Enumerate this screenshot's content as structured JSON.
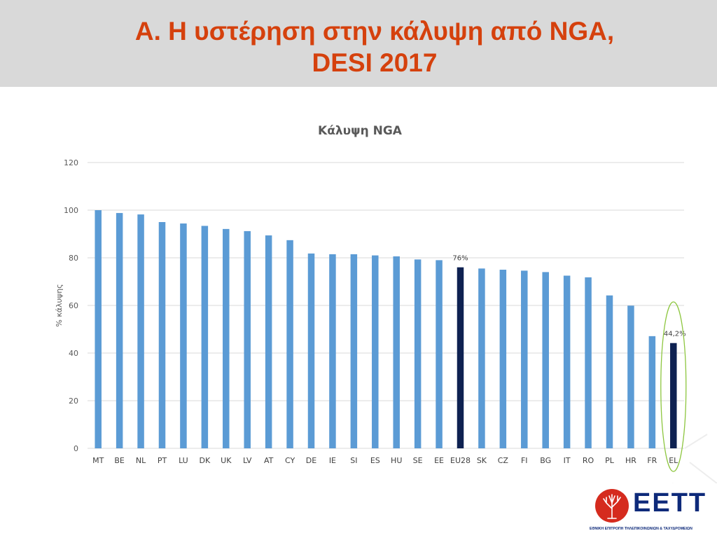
{
  "slide": {
    "title_line1": "Α. Η υστέρηση στην κάλυψη από NGA,",
    "title_line2": "DESI 2017"
  },
  "logo": {
    "wordmark": "ΕΕΤΤ",
    "subtitle": "ΕΘΝΙΚΗ ΕΠΙΤΡΟΠΗ ΤΗΛΕΠΙΚΟΙΝΩΝΙΩΝ & ΤΑΧΥΔΡΟΜΕΙΩΝ",
    "icon": "tree-seal-icon",
    "color": "#0e2a7a",
    "seal_color": "#d52b1e"
  },
  "chart_data": {
    "type": "bar",
    "title": "Κάλυψη NGA",
    "xlabel": "",
    "ylabel": "% κάλυψης",
    "ylim": [
      0,
      120
    ],
    "yticks": [
      0,
      20,
      40,
      60,
      80,
      100,
      120
    ],
    "grid": true,
    "legend": "none",
    "categories": [
      "MT",
      "BE",
      "NL",
      "PT",
      "LU",
      "DK",
      "UK",
      "LV",
      "AT",
      "CY",
      "DE",
      "IE",
      "SI",
      "ES",
      "HU",
      "SE",
      "EE",
      "EU28",
      "SK",
      "CZ",
      "FI",
      "BG",
      "IT",
      "RO",
      "PL",
      "HR",
      "FR",
      "EL"
    ],
    "values": [
      100,
      98.8,
      98.2,
      95,
      94.4,
      93.4,
      92.1,
      91.2,
      89.4,
      87.4,
      81.8,
      81.5,
      81.5,
      81,
      80.6,
      79.3,
      79,
      76,
      75.5,
      75,
      74.6,
      74,
      72.5,
      71.8,
      64.2,
      59.9,
      47.1,
      44.2
    ],
    "highlight": [
      "EU28",
      "EL"
    ],
    "data_labels": {
      "EU28": "76%",
      "EL": "44,2%"
    },
    "colors": {
      "bar": "#5b9bd5",
      "highlight": "#0e2151",
      "grid": "#d9d9d9",
      "ellipse": "#8dc63f"
    }
  }
}
